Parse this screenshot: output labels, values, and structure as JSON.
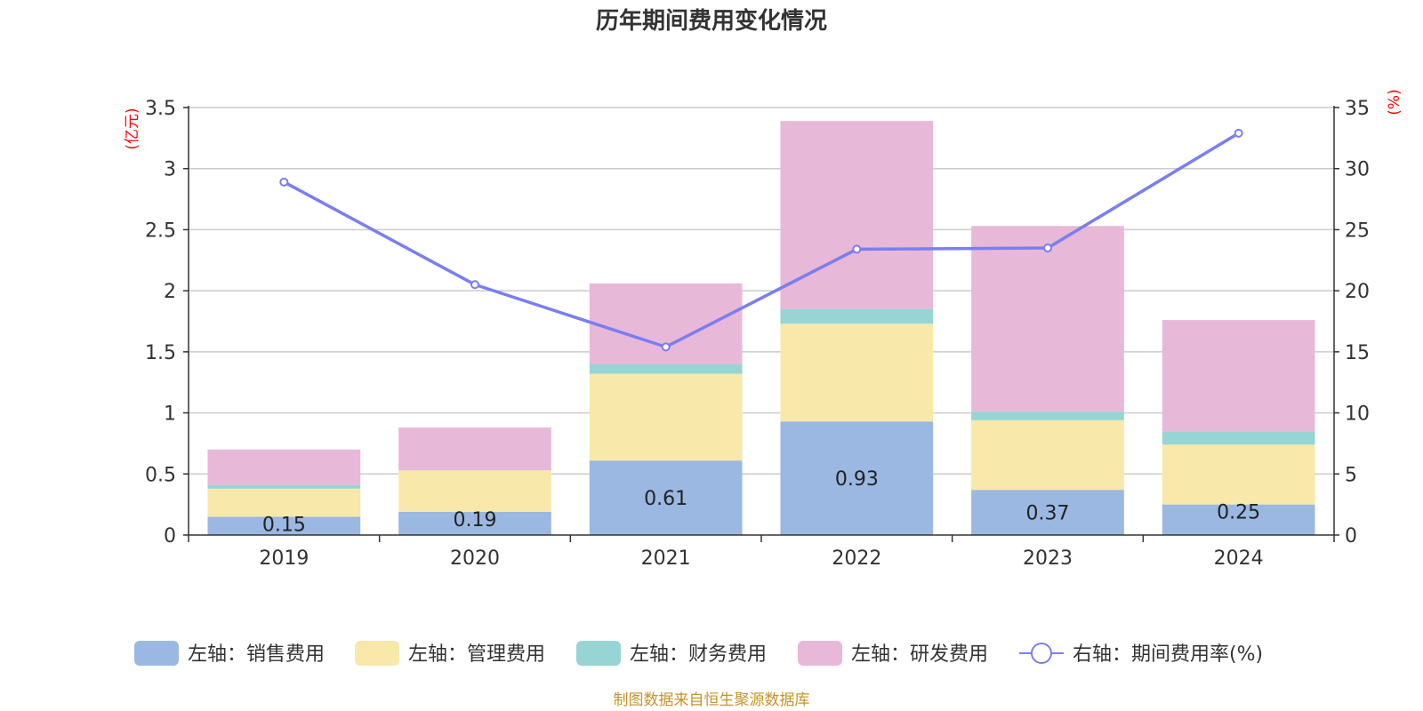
{
  "chart_data": {
    "type": "bar",
    "title": "历年期间费用变化情况",
    "categories": [
      "2019",
      "2020",
      "2021",
      "2022",
      "2023",
      "2024"
    ],
    "left_axis": {
      "unit": "(亿元)",
      "ylim": [
        0,
        3.5
      ],
      "ticks": [
        "0",
        "0.5",
        "1",
        "1.5",
        "2",
        "2.5",
        "3",
        "3.5"
      ]
    },
    "right_axis": {
      "unit": "(%)",
      "ylim": [
        0,
        35
      ],
      "ticks": [
        "0",
        "5",
        "10",
        "15",
        "20",
        "25",
        "30",
        "35"
      ]
    },
    "stacked": true,
    "grid": true,
    "legend_position": "bottom",
    "series": [
      {
        "name": "左轴：销售费用",
        "type": "bar",
        "axis": "left",
        "color": "#9bb8e2",
        "values": [
          0.15,
          0.19,
          0.61,
          0.93,
          0.37,
          0.25
        ],
        "show_labels": true
      },
      {
        "name": "左轴：管理费用",
        "type": "bar",
        "axis": "left",
        "color": "#f8e8a9",
        "values": [
          0.23,
          0.34,
          0.71,
          0.8,
          0.57,
          0.49
        ]
      },
      {
        "name": "左轴：财务费用",
        "type": "bar",
        "axis": "left",
        "color": "#96d5d4",
        "values": [
          0.03,
          0.0,
          0.08,
          0.12,
          0.07,
          0.11
        ]
      },
      {
        "name": "左轴：研发费用",
        "type": "bar",
        "axis": "left",
        "color": "#e8b8d9",
        "values": [
          0.29,
          0.35,
          0.66,
          1.54,
          1.52,
          0.91
        ]
      },
      {
        "name": "右轴：期间费用率(%)",
        "type": "line",
        "axis": "right",
        "color": "#7a7ef0",
        "values": [
          28.9,
          20.5,
          15.4,
          23.4,
          23.5,
          32.9
        ]
      }
    ],
    "source": "制图数据来自恒生聚源数据库"
  }
}
